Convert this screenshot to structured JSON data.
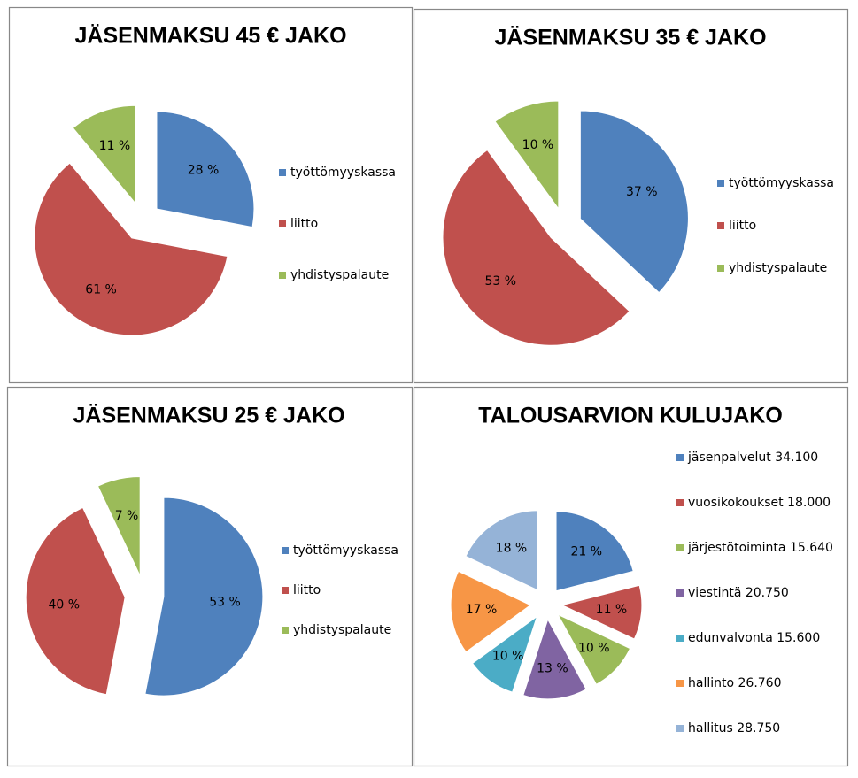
{
  "chart_data": [
    {
      "type": "pie",
      "title": "JÄSENMAKSU 45 € JAKO",
      "categories": [
        "työttömyyskassa",
        "liitto",
        "yhdistyspalaute"
      ],
      "values": [
        28,
        61,
        11
      ],
      "value_labels": [
        "28 %",
        "61 %",
        "11 %"
      ],
      "colors": [
        "#4f81bd",
        "#c0504d",
        "#9bbb59"
      ],
      "legend": "right"
    },
    {
      "type": "pie",
      "title": "JÄSENMAKSU 35 € JAKO",
      "categories": [
        "työttömyyskassa",
        "liitto",
        "yhdistyspalaute"
      ],
      "values": [
        37,
        53,
        10
      ],
      "value_labels": [
        "37 %",
        "53 %",
        "10 %"
      ],
      "colors": [
        "#4f81bd",
        "#c0504d",
        "#9bbb59"
      ],
      "legend": "right"
    },
    {
      "type": "pie",
      "title": "JÄSENMAKSU 25 € JAKO",
      "categories": [
        "työttömyyskassa",
        "liitto",
        "yhdistyspalaute"
      ],
      "values": [
        53,
        40,
        7
      ],
      "value_labels": [
        "53 %",
        "40 %",
        "7 %"
      ],
      "colors": [
        "#4f81bd",
        "#c0504d",
        "#9bbb59"
      ],
      "legend": "right"
    },
    {
      "type": "pie",
      "title": "TALOUSARVION KULUJAKO",
      "categories": [
        "jäsenpalvelut  34.100",
        "vuosikokoukset  18.000",
        "järjestötoiminta 15.640",
        "viestintä 20.750",
        "edunvalvonta 15.600",
        "hallinto 26.760",
        "hallitus 28.750"
      ],
      "values": [
        21,
        11,
        10,
        13,
        10,
        17,
        18
      ],
      "value_labels": [
        "21 %",
        "11 %",
        "10 %",
        "13 %",
        "10 %",
        "17 %",
        "18 %"
      ],
      "colors": [
        "#4f81bd",
        "#c0504d",
        "#9bbb59",
        "#8064a2",
        "#4bacc6",
        "#f79646",
        "#95b3d7"
      ],
      "legend": "right"
    }
  ]
}
